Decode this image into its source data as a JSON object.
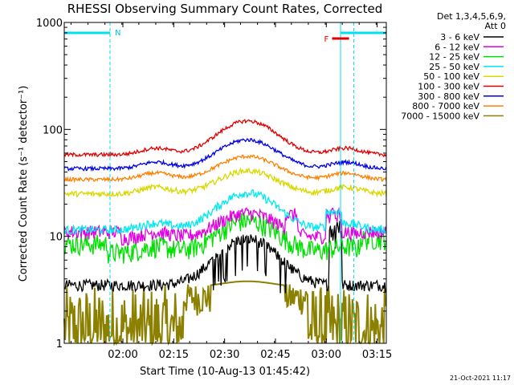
{
  "chart_data": {
    "type": "line",
    "title": "RHESSI Observing Summary Count Rates, Corrected",
    "xlabel": "Start Time (10-Aug-13 01:45:42)",
    "ylabel": "Corrected Count Rate (s⁻¹ detector⁻¹)",
    "y_scale": "log",
    "ylim": [
      1,
      1000
    ],
    "xlim_minutes": [
      -3,
      92
    ],
    "x_ticks": [
      {
        "m": 14.3,
        "label": "02:00"
      },
      {
        "m": 29.3,
        "label": "02:15"
      },
      {
        "m": 44.3,
        "label": "02:30"
      },
      {
        "m": 59.3,
        "label": "02:45"
      },
      {
        "m": 74.3,
        "label": "03:00"
      },
      {
        "m": 89.3,
        "label": "03:15"
      }
    ],
    "y_ticks": [
      {
        "v": 1,
        "label": "1"
      },
      {
        "v": 10,
        "label": "10"
      },
      {
        "v": 100,
        "label": "100"
      },
      {
        "v": 1000,
        "label": "1000"
      }
    ],
    "legend_header": [
      "Det 1,3,4,5,6,9,",
      "Att 0"
    ],
    "night_intervals": [
      [
        -3,
        10.5
      ],
      [
        78.5,
        92
      ]
    ],
    "night_label": "N",
    "flare_label": "F",
    "flare_interval": [
      76,
      81
    ],
    "saa_dashed_lines_minutes": [
      10.5,
      82.4
    ],
    "series": [
      {
        "name": "3 - 6 keV",
        "color": "#000000"
      },
      {
        "name": "6 - 12 keV",
        "color": "#e000e0"
      },
      {
        "name": "12 - 25 keV",
        "color": "#00e000"
      },
      {
        "name": "25 - 50 keV",
        "color": "#00e8f0"
      },
      {
        "name": "50 - 100 keV",
        "color": "#d8d800"
      },
      {
        "name": "100 - 300 keV",
        "color": "#e00000"
      },
      {
        "name": "300 - 800 keV",
        "color": "#0000e8"
      },
      {
        "name": "800 - 7000 keV",
        "color": "#ff8000"
      },
      {
        "name": "7000 - 15000 keV",
        "color": "#8c8000"
      }
    ],
    "timestamp": "21-Oct-2021 11:17"
  }
}
